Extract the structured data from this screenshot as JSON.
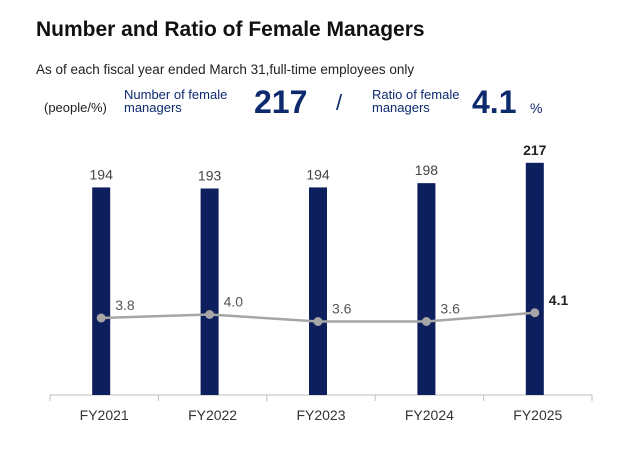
{
  "header": {
    "title": "Number and Ratio of Female Managers",
    "subtitle": "As of each fiscal year ended March 31,full-time employees only",
    "unit": "(people/%)"
  },
  "kpis": {
    "count_label": "Number of female\nmanagers",
    "count_value": "217",
    "separator": "/",
    "ratio_label": "Ratio of female\nmanagers",
    "ratio_value": "4.1",
    "ratio_unit": "%"
  },
  "chart_data": {
    "type": "bar",
    "categories": [
      "FY2021",
      "FY2022",
      "FY2023",
      "FY2024",
      "FY2025"
    ],
    "series": [
      {
        "values": [
          194,
          193,
          194,
          198,
          217
        ],
        "type": "bar",
        "color": "#0d1f5c"
      },
      {
        "values": [
          3.8,
          4.0,
          3.6,
          3.6,
          4.1
        ],
        "type": "line",
        "color": "#a6a6a6"
      }
    ],
    "bar_labels": [
      "194",
      "193",
      "194",
      "198",
      "217"
    ],
    "line_labels": [
      "3.8",
      "4.0",
      "3.6",
      "3.6",
      "4.1"
    ],
    "highlight_last": true,
    "grid": false
  }
}
